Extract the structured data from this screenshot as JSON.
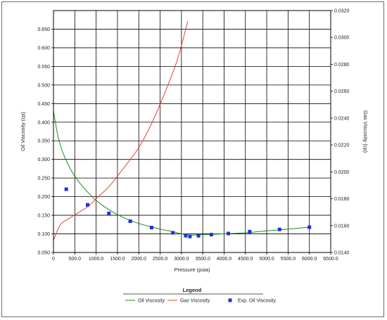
{
  "chart_data": {
    "type": "line",
    "xlabel": "Pressure (psia)",
    "ylabel": "Oil Viscosity (cp)",
    "y2label": "Gas Viscosity (cp)",
    "xlim": [
      0,
      6500
    ],
    "ylim": [
      0.05,
      0.7
    ],
    "y2lim": [
      0.014,
      0.032
    ],
    "grid": true,
    "legend_title": "Legend",
    "legend_position": "bottom",
    "x_ticks": [
      "0",
      "500.0",
      "1000.0",
      "1500.0",
      "2000.0",
      "2500.0",
      "3000.0",
      "3500.0",
      "4000.0",
      "4500.0",
      "5000.0",
      "5500.0",
      "6000.0",
      "6500.0"
    ],
    "y_ticks": [
      "0.050",
      "0.100",
      "0.150",
      "0.200",
      "0.250",
      "0.300",
      "0.350",
      "0.400",
      "0.450",
      "0.500",
      "0.550",
      "0.600",
      "0.650"
    ],
    "y2_ticks": [
      "0.0140",
      "0.0160",
      "0.0180",
      "0.0200",
      "0.0220",
      "0.0240",
      "0.0260",
      "0.0280",
      "0.0300",
      "0.0320"
    ],
    "series": [
      {
        "name": "Oil Viscosity",
        "kind": "line",
        "axis": "left",
        "color": "#1a8a1a",
        "x": [
          0,
          100,
          200,
          300,
          400,
          500,
          700,
          1000,
          1300,
          1600,
          2000,
          2500,
          2800,
          3000,
          3200,
          3300,
          3500,
          4000,
          4500,
          5000,
          5500,
          6000
        ],
        "y": [
          0.43,
          0.365,
          0.325,
          0.297,
          0.274,
          0.255,
          0.225,
          0.19,
          0.165,
          0.146,
          0.128,
          0.113,
          0.106,
          0.1,
          0.097,
          0.097,
          0.098,
          0.1,
          0.103,
          0.108,
          0.113,
          0.118
        ]
      },
      {
        "name": "Gas Viscosity",
        "kind": "line",
        "axis": "right",
        "color": "#e8413a",
        "x": [
          0,
          100,
          200,
          400,
          600,
          800,
          1000,
          1300,
          1600,
          2000,
          2300,
          2600,
          2900,
          3150
        ],
        "y": [
          0.0149,
          0.0157,
          0.0162,
          0.0166,
          0.017,
          0.0174,
          0.018,
          0.0189,
          0.0201,
          0.0218,
          0.0236,
          0.0258,
          0.0283,
          0.0312
        ]
      },
      {
        "name": "Exp. Oil Viscosity",
        "kind": "scatter",
        "axis": "left",
        "color": "#1f2fe0",
        "x": [
          300,
          800,
          1300,
          1800,
          2300,
          2800,
          3100,
          3200,
          3400,
          3700,
          4100,
          4600,
          5300,
          6000
        ],
        "y": [
          0.22,
          0.178,
          0.155,
          0.134,
          0.117,
          0.103,
          0.095,
          0.093,
          0.095,
          0.098,
          0.101,
          0.106,
          0.112,
          0.118
        ]
      }
    ]
  }
}
